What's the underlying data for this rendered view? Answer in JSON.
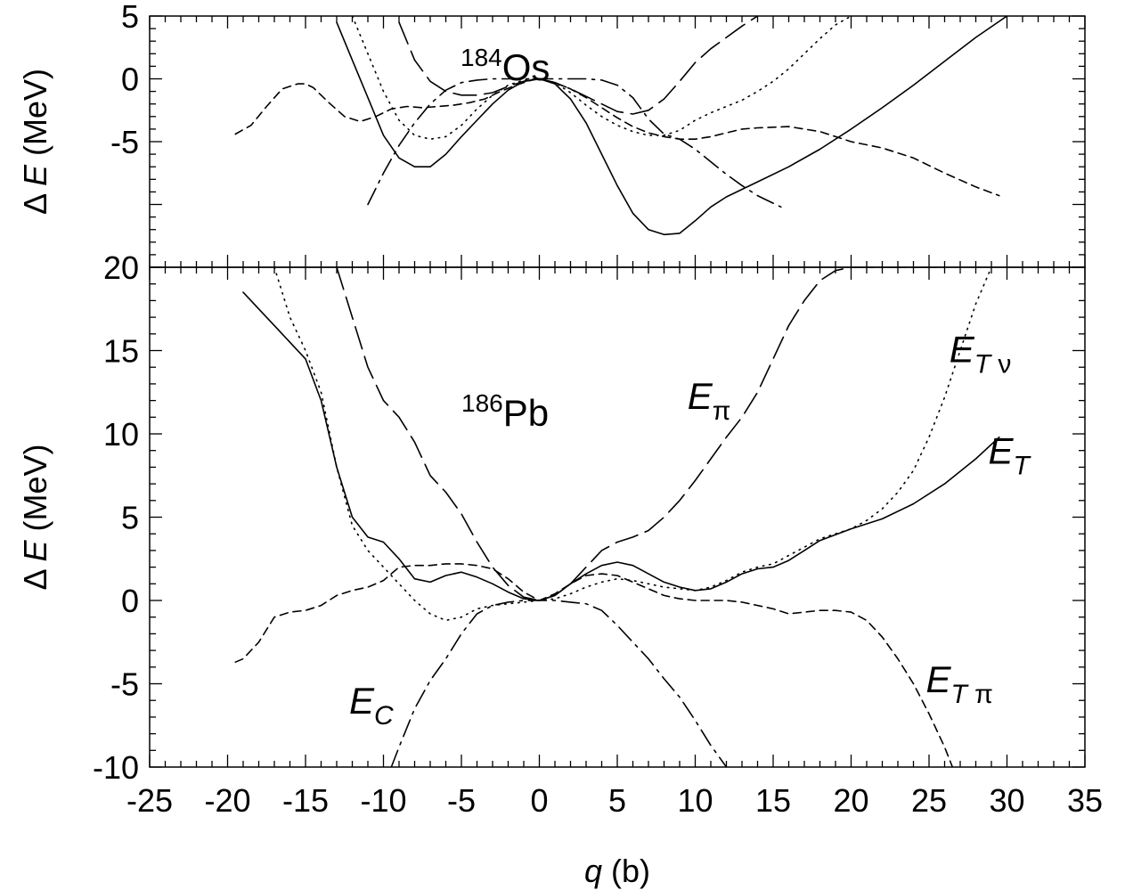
{
  "chart_data": [
    {
      "type": "line",
      "panel": "top",
      "annotation": {
        "sup": "184",
        "main": "Os"
      },
      "ylabel_prefix": "Δ ",
      "ylabel_var": "E",
      "ylabel_unit": " (MeV)",
      "xlim": [
        -25,
        35
      ],
      "ylim": [
        -15,
        5
      ],
      "yticks": [
        {
          "v": 5,
          "label": "5"
        },
        {
          "v": 0,
          "label": "0"
        },
        {
          "v": -5,
          "label": "-5"
        }
      ],
      "series": [
        {
          "style": "solid",
          "x": [
            -13,
            -12,
            -11,
            -10,
            -9,
            -8,
            -7,
            -6,
            -5,
            -4,
            -3,
            -2,
            -1,
            0,
            1,
            2,
            3,
            4,
            5,
            6,
            7,
            8,
            9,
            10,
            11,
            12,
            14,
            16,
            18,
            20,
            22,
            24,
            26,
            28,
            30
          ],
          "y": [
            4.5,
            1.5,
            -1.5,
            -4.5,
            -6.3,
            -7.0,
            -7.0,
            -6.0,
            -4.6,
            -3.3,
            -2.0,
            -0.9,
            -0.2,
            0,
            -0.4,
            -1.6,
            -3.5,
            -6.0,
            -8.5,
            -10.7,
            -12.0,
            -12.4,
            -12.3,
            -11.3,
            -10.2,
            -9.4,
            -8.2,
            -7.0,
            -5.6,
            -4.0,
            -2.3,
            -0.5,
            1.4,
            3.3,
            5.0
          ]
        },
        {
          "style": "dotted",
          "x": [
            -12,
            -11,
            -10,
            -9,
            -8,
            -7,
            -6,
            -5,
            -4,
            -3,
            -2,
            -1,
            0,
            1,
            2,
            3,
            4,
            5,
            6,
            7,
            8,
            9,
            10,
            11,
            12,
            13,
            14,
            15,
            16,
            17,
            18,
            19,
            20
          ],
          "y": [
            5.0,
            2.0,
            -1.0,
            -3.3,
            -4.5,
            -4.8,
            -4.6,
            -3.7,
            -2.4,
            -1.3,
            -0.5,
            -0.1,
            0,
            -0.3,
            -1.1,
            -2.1,
            -3.0,
            -3.7,
            -4.2,
            -4.5,
            -4.5,
            -4.1,
            -3.3,
            -2.7,
            -2.2,
            -1.7,
            -1.0,
            -0.2,
            0.8,
            2.0,
            3.2,
            4.3,
            5.0
          ]
        },
        {
          "style": "long-dash",
          "x": [
            -9,
            -8,
            -7,
            -6,
            -5,
            -4,
            -3,
            -2,
            -1,
            0,
            1,
            2,
            3,
            4,
            5,
            6,
            7,
            8,
            9,
            10,
            11,
            12,
            13,
            14
          ],
          "y": [
            4.5,
            1.5,
            -0.2,
            -1.0,
            -1.3,
            -1.3,
            -1.1,
            -0.6,
            -0.2,
            0,
            -0.3,
            -0.8,
            -1.4,
            -2.0,
            -2.6,
            -2.8,
            -2.5,
            -1.6,
            -0.2,
            1.3,
            2.4,
            3.3,
            4.2,
            5.0
          ]
        },
        {
          "style": "short-dash",
          "x": [
            -19.5,
            -18.5,
            -17.5,
            -16.5,
            -15.5,
            -15,
            -14.5,
            -13.5,
            -12.5,
            -11.5,
            -10.5,
            -9.5,
            -8.5,
            -7.5,
            -6.5,
            -5.5,
            -4.5,
            -3.5,
            -2.5,
            -1.5,
            -0.5,
            0,
            1,
            2,
            3,
            4,
            5,
            6,
            7,
            8,
            9,
            10,
            11,
            12,
            13,
            14,
            16,
            18,
            20,
            22,
            24,
            26,
            28,
            29.5
          ],
          "y": [
            -4.4,
            -3.7,
            -2.2,
            -0.8,
            -0.4,
            -0.4,
            -0.7,
            -1.9,
            -3.0,
            -3.4,
            -3.0,
            -2.4,
            -2.2,
            -2.3,
            -2.2,
            -2.1,
            -1.9,
            -1.6,
            -1.0,
            -0.5,
            -0.1,
            0,
            -0.3,
            -0.8,
            -1.5,
            -2.3,
            -3.1,
            -3.8,
            -4.3,
            -4.6,
            -4.8,
            -4.8,
            -4.6,
            -4.3,
            -4.0,
            -3.9,
            -3.8,
            -4.2,
            -5.0,
            -5.5,
            -6.3,
            -7.5,
            -8.6,
            -9.3
          ]
        },
        {
          "style": "dash-dot",
          "x": [
            -11,
            -10,
            -9,
            -8,
            -7,
            -6,
            -5,
            -4,
            -3,
            -2,
            -1,
            0,
            1,
            2,
            3,
            4,
            5,
            6,
            7,
            8,
            9,
            10,
            11,
            12,
            13,
            14,
            15,
            15.5
          ],
          "y": [
            -10.0,
            -7.5,
            -5.3,
            -3.5,
            -2.0,
            -0.9,
            -0.3,
            -0.1,
            0,
            0,
            0,
            0,
            0,
            0,
            0,
            -0.1,
            -0.5,
            -1.5,
            -3.2,
            -4.4,
            -4.8,
            -5.6,
            -6.6,
            -7.6,
            -8.5,
            -9.3,
            -9.9,
            -10.2
          ]
        }
      ]
    },
    {
      "type": "line",
      "panel": "bottom",
      "annotation": {
        "sup": "186",
        "main": "Pb"
      },
      "ylabel_prefix": "Δ ",
      "ylabel_var": "E",
      "ylabel_unit": " (MeV)",
      "xlabel_var": "q",
      "xlabel_unit": " (b)",
      "xlim": [
        -25,
        35
      ],
      "ylim": [
        -10,
        20
      ],
      "yticks": [
        {
          "v": 20,
          "label": "20"
        },
        {
          "v": 15,
          "label": "15"
        },
        {
          "v": 10,
          "label": "10"
        },
        {
          "v": 5,
          "label": "5"
        },
        {
          "v": 0,
          "label": "0"
        },
        {
          "v": -5,
          "label": "-5"
        },
        {
          "v": -10,
          "label": "-10"
        }
      ],
      "xticks": [
        {
          "v": -25,
          "label": "-25"
        },
        {
          "v": -20,
          "label": "-20"
        },
        {
          "v": -15,
          "label": "-15"
        },
        {
          "v": -10,
          "label": "-10"
        },
        {
          "v": -5,
          "label": "-5"
        },
        {
          "v": 0,
          "label": "0"
        },
        {
          "v": 5,
          "label": "5"
        },
        {
          "v": 10,
          "label": "10"
        },
        {
          "v": 15,
          "label": "15"
        },
        {
          "v": 20,
          "label": "20"
        },
        {
          "v": 25,
          "label": "25"
        },
        {
          "v": 30,
          "label": "30"
        },
        {
          "v": 35,
          "label": "35"
        }
      ],
      "labels": [
        {
          "var": "E",
          "sub": "π",
          "x": 9.5,
          "y": 11.5
        },
        {
          "var": "E",
          "sub": "Tν",
          "x": 26.3,
          "y": 14.3
        },
        {
          "var": "E",
          "sub": "T",
          "x": 28.8,
          "y": 8.2
        },
        {
          "var": "E",
          "sub": "C",
          "x": -12.2,
          "y": -6.8
        },
        {
          "var": "E",
          "sub": "Tπ",
          "x": 24.8,
          "y": -5.5
        }
      ],
      "series": [
        {
          "style": "solid",
          "x": [
            -19,
            -18,
            -17,
            -16,
            -15,
            -14,
            -13,
            -12,
            -11,
            -10,
            -9,
            -8,
            -7,
            -6,
            -5,
            -4,
            -3,
            -2,
            -1,
            0,
            1,
            2,
            3,
            4,
            5,
            6,
            7,
            8,
            9,
            10,
            11,
            12,
            13,
            14,
            15,
            16,
            17,
            18,
            20,
            22,
            24,
            26,
            28,
            29.5
          ],
          "y": [
            18.5,
            17.5,
            16.5,
            15.5,
            14.5,
            12.0,
            8.0,
            5.0,
            3.8,
            3.5,
            2.5,
            1.3,
            1.1,
            1.5,
            1.7,
            1.4,
            1.0,
            0.5,
            0.1,
            0,
            0.3,
            1.0,
            1.6,
            2.1,
            2.3,
            2.1,
            1.6,
            1.1,
            0.8,
            0.6,
            0.7,
            1.1,
            1.6,
            1.9,
            2.0,
            2.4,
            3.0,
            3.6,
            4.3,
            4.9,
            5.8,
            7.0,
            8.5,
            9.8
          ]
        },
        {
          "style": "dotted",
          "x": [
            -17,
            -16,
            -15,
            -14,
            -13,
            -12,
            -11,
            -10,
            -9,
            -8,
            -7,
            -6,
            -5,
            -4,
            -3,
            -2,
            -1,
            0,
            1,
            2,
            3,
            4,
            5,
            6,
            7,
            8,
            9,
            10,
            11,
            12,
            13,
            14,
            15,
            16,
            17,
            18,
            19,
            20,
            21,
            22,
            23,
            24,
            25,
            26,
            27,
            28,
            29
          ],
          "y": [
            20.0,
            17.0,
            15.0,
            12.5,
            8.0,
            4.5,
            3.0,
            2.0,
            1.0,
            0,
            -0.8,
            -1.2,
            -1.0,
            -0.5,
            -0.3,
            -0.2,
            -0.1,
            0,
            0.1,
            0.4,
            0.8,
            1.1,
            1.3,
            1.2,
            1.0,
            0.8,
            0.7,
            0.6,
            0.8,
            1.2,
            1.7,
            2.0,
            2.2,
            2.7,
            3.2,
            3.7,
            4.0,
            4.3,
            4.8,
            5.5,
            6.5,
            7.8,
            9.8,
            12.2,
            15.0,
            17.8,
            20.0
          ]
        },
        {
          "style": "long-dash",
          "x": [
            -13,
            -12,
            -11,
            -10,
            -9,
            -8,
            -7,
            -6,
            -5,
            -4,
            -3,
            -2,
            -1,
            0,
            1,
            2,
            3,
            4,
            5,
            6,
            7,
            8,
            9,
            10,
            11,
            12,
            13,
            14,
            15,
            16,
            17,
            18,
            19,
            20,
            22,
            24,
            26
          ],
          "y": [
            20.0,
            17.0,
            14.0,
            12.0,
            11.0,
            9.5,
            7.5,
            6.5,
            5.2,
            3.5,
            2.0,
            0.9,
            0.2,
            0,
            0.3,
            1.0,
            2.0,
            3.0,
            3.5,
            3.8,
            4.2,
            5.0,
            6.0,
            7.2,
            8.5,
            9.8,
            11.0,
            12.5,
            14.5,
            16.5,
            18.0,
            19.2,
            19.8,
            20.0,
            20.0,
            20.0,
            20.0
          ]
        },
        {
          "style": "short-dash",
          "x": [
            -19.5,
            -19,
            -18,
            -17,
            -16,
            -15,
            -14,
            -13,
            -12,
            -11,
            -10,
            -9,
            -8,
            -7,
            -6,
            -5,
            -4,
            -3,
            -2,
            -1,
            0,
            1,
            2,
            3,
            4,
            5,
            6,
            7,
            8,
            9,
            10,
            11,
            12,
            13,
            14,
            15,
            16,
            17,
            18,
            19,
            20,
            21,
            22,
            23,
            24,
            25,
            26,
            26.5
          ],
          "y": [
            -3.7,
            -3.5,
            -2.5,
            -1.0,
            -0.7,
            -0.6,
            -0.3,
            0.3,
            0.6,
            0.8,
            1.2,
            2.0,
            2.1,
            2.1,
            2.2,
            2.2,
            2.1,
            1.9,
            1.3,
            0.5,
            0,
            0.4,
            1.0,
            1.5,
            1.6,
            1.5,
            1.1,
            0.7,
            0.3,
            0.1,
            0,
            0,
            0,
            -0.1,
            -0.3,
            -0.5,
            -0.8,
            -0.7,
            -0.6,
            -0.6,
            -0.7,
            -1.2,
            -2.2,
            -3.5,
            -5.0,
            -6.8,
            -8.8,
            -10.0
          ]
        },
        {
          "style": "dash-dot",
          "x": [
            -9.5,
            -9,
            -8,
            -7,
            -6,
            -5,
            -4,
            -3,
            -2,
            -1,
            0,
            1,
            2,
            3,
            4,
            5,
            6,
            7,
            8,
            9,
            10,
            11,
            12
          ],
          "y": [
            -10.0,
            -8.8,
            -6.5,
            -4.8,
            -3.5,
            -2.0,
            -0.8,
            -0.3,
            -0.1,
            0,
            0,
            0,
            -0.1,
            -0.2,
            -0.6,
            -1.5,
            -2.5,
            -3.5,
            -4.7,
            -5.8,
            -7.2,
            -8.7,
            -10.0
          ]
        }
      ]
    }
  ]
}
